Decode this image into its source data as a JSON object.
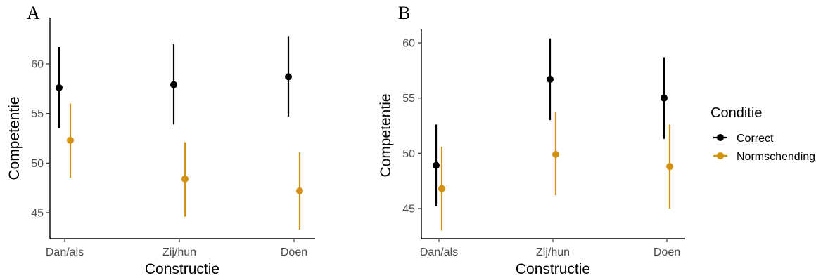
{
  "chart_data": [
    {
      "type": "scatter",
      "panel": "A",
      "title": "",
      "xlabel": "Constructie",
      "ylabel": "Competentie",
      "categories": [
        "Dan/als",
        "Zij/hun",
        "Doen"
      ],
      "ylim": [
        42.5,
        63.5
      ],
      "yticks": [
        45,
        50,
        55,
        60
      ],
      "grid": false,
      "series": [
        {
          "name": "Correct",
          "color": "#000000",
          "values": [
            57.6,
            57.9,
            58.7
          ],
          "lower": [
            53.5,
            53.9,
            54.7
          ],
          "upper": [
            61.7,
            62.0,
            62.8
          ]
        },
        {
          "name": "Normschending",
          "color": "#D4900F",
          "values": [
            52.3,
            48.4,
            47.2
          ],
          "lower": [
            48.5,
            44.6,
            43.3
          ],
          "upper": [
            56.0,
            52.1,
            51.1
          ]
        }
      ]
    },
    {
      "type": "scatter",
      "panel": "B",
      "title": "",
      "xlabel": "Constructie",
      "ylabel": "Competentie",
      "categories": [
        "Dan/als",
        "Zij/hun",
        "Doen"
      ],
      "ylim": [
        42.2,
        61.3
      ],
      "yticks": [
        45,
        50,
        55,
        60
      ],
      "grid": false,
      "series": [
        {
          "name": "Correct",
          "color": "#000000",
          "values": [
            48.9,
            56.7,
            55.0
          ],
          "lower": [
            45.2,
            53.0,
            51.3
          ],
          "upper": [
            52.6,
            60.4,
            58.7
          ]
        },
        {
          "name": "Normschending",
          "color": "#D4900F",
          "values": [
            46.8,
            49.9,
            48.8
          ],
          "lower": [
            43.0,
            46.2,
            45.0
          ],
          "upper": [
            50.6,
            53.7,
            52.6
          ]
        }
      ]
    }
  ],
  "legend": {
    "title": "Conditie",
    "placement": "right",
    "items": [
      {
        "label": "Correct",
        "color": "#000000"
      },
      {
        "label": "Normschending",
        "color": "#D4900F"
      }
    ]
  }
}
